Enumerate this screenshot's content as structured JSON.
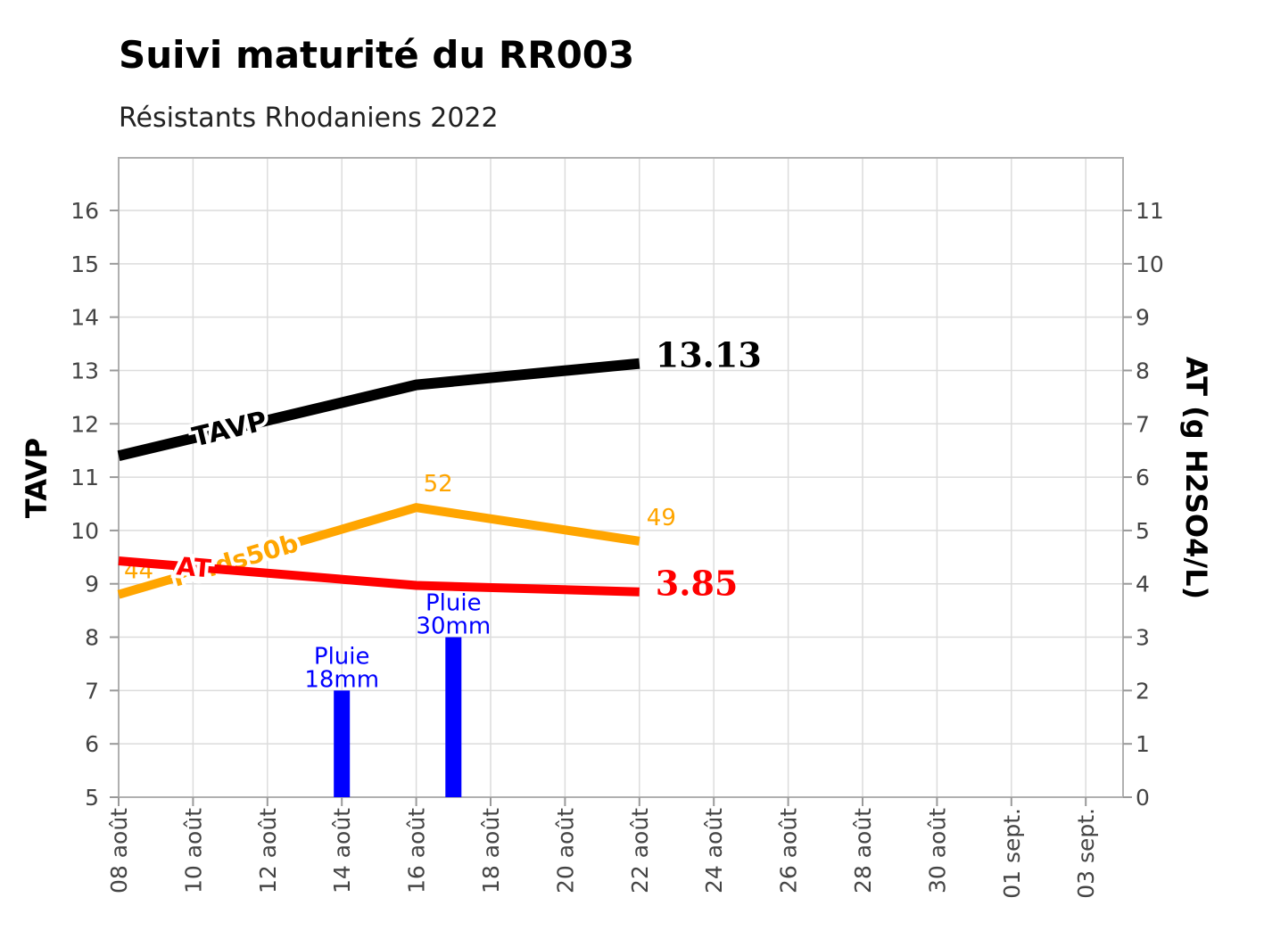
{
  "chart_data": {
    "type": "line",
    "title": "Suivi maturité du RR003",
    "subtitle": "Résistants Rhodaniens 2022",
    "ylabel_left": "TAVP",
    "ylabel_right": "AT (g H2SO4/L)",
    "ylim_left": [
      5,
      17
    ],
    "ylim_right": [
      0,
      12
    ],
    "y_ticks_left": [
      "5",
      "6",
      "7",
      "8",
      "9",
      "10",
      "11",
      "12",
      "13",
      "14",
      "15",
      "16"
    ],
    "y_ticks_right": [
      "0",
      "1",
      "2",
      "3",
      "4",
      "5",
      "6",
      "7",
      "8",
      "9",
      "10",
      "11"
    ],
    "x_ticks": [
      "08 août",
      "10 août",
      "12 août",
      "14 août",
      "16 août",
      "18 août",
      "20 août",
      "22 août",
      "24 août",
      "26 août",
      "28 août",
      "30 août",
      "01 sept.",
      "03 sept."
    ],
    "series": [
      {
        "name": "TAVP",
        "color": "#000000",
        "axis": "left",
        "x": [
          "2022-08-08",
          "2022-08-16",
          "2022-08-22"
        ],
        "y": [
          11.4,
          12.73,
          13.13
        ],
        "end_label": "13.13"
      },
      {
        "name": "Poids50b",
        "color": "#FFA500",
        "axis": "left",
        "x": [
          "2022-08-08",
          "2022-08-16",
          "2022-08-22"
        ],
        "y": [
          8.8,
          10.43,
          9.8
        ],
        "point_labels": [
          "44",
          "52",
          "49"
        ]
      },
      {
        "name": "AT",
        "color": "#FF0000",
        "axis": "right",
        "x": [
          "2022-08-08",
          "2022-08-16",
          "2022-08-22"
        ],
        "y": [
          4.43,
          3.97,
          3.85
        ],
        "end_label": "3.85"
      }
    ],
    "rain": [
      {
        "date": "2022-08-14",
        "mm": 18,
        "label_1": "Pluie",
        "label_2": "18mm",
        "top_tavp": 7
      },
      {
        "date": "2022-08-17",
        "mm": 30,
        "label_1": "Pluie",
        "label_2": "30mm",
        "top_tavp": 8
      }
    ],
    "rain_color": "#0000FF",
    "grid": true
  }
}
